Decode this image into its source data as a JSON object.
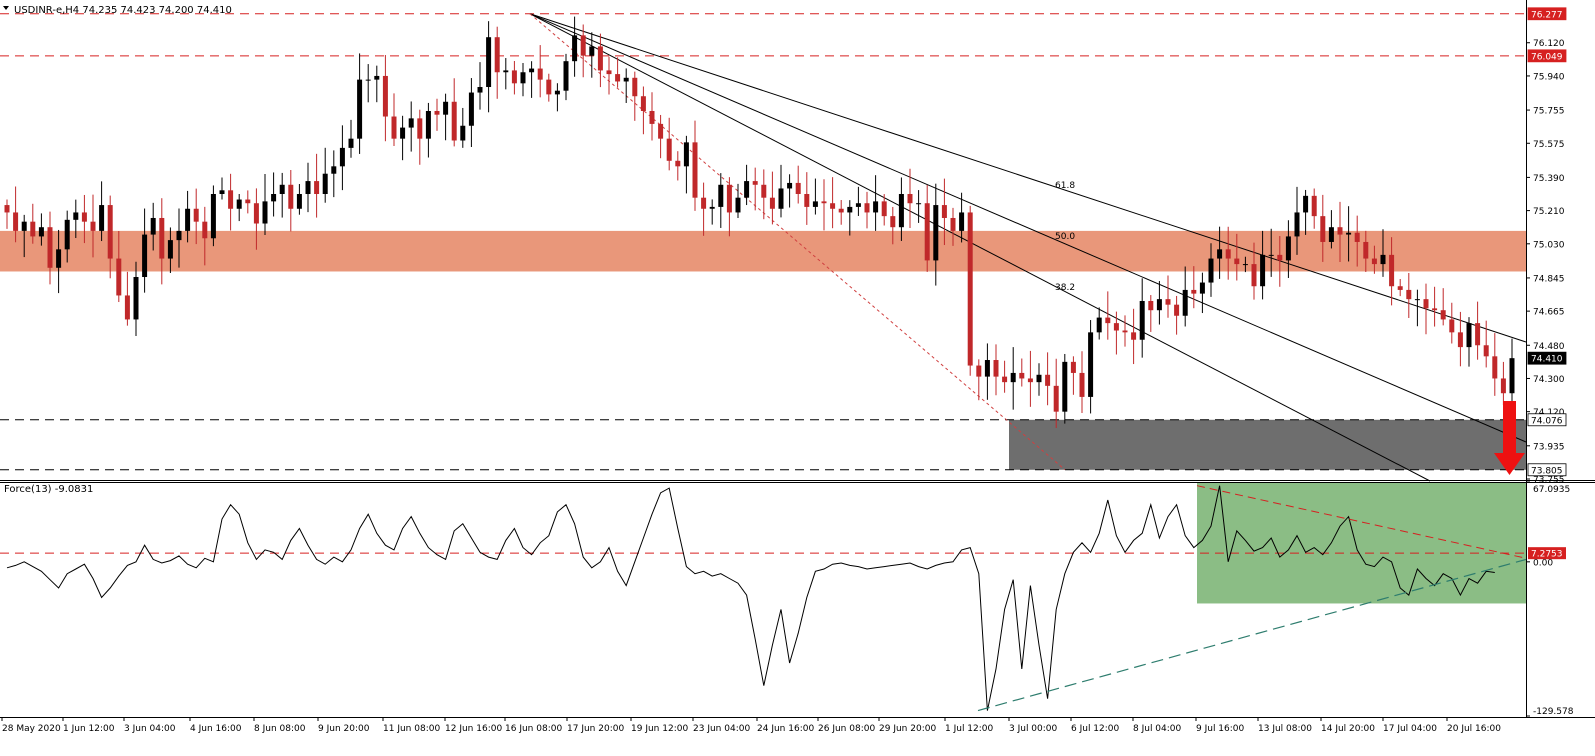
{
  "header": {
    "main_label": "USDINR-e,H4  74.235 74.423 74.200 74.410",
    "force_label": "Force(13) -9.0831"
  },
  "colors": {
    "bull_candle": "#000000",
    "bear_candle": "#c0282a",
    "zone_red": "#e9977a",
    "zone_grey": "#6e6e6e",
    "zone_green": "#8bbd85",
    "level_line": "#d62020",
    "arrow": "#ee1111",
    "trend_up_dashed": "#2e7d6e"
  },
  "chart_data": [
    {
      "type": "candlestick",
      "symbol": "USDINR-e",
      "timeframe": "H4",
      "last": {
        "open": 74.235,
        "high": 74.423,
        "low": 74.2,
        "close": 74.41
      },
      "ylim": [
        73.755,
        76.33
      ],
      "y_ticks": [
        "76.120",
        "75.940",
        "75.755",
        "75.575",
        "75.390",
        "75.210",
        "75.030",
        "74.845",
        "74.665",
        "74.480",
        "74.300",
        "74.120",
        "73.935",
        "73.755"
      ],
      "price_labels": [
        {
          "value": 76.277,
          "text": "76.277",
          "style": "red"
        },
        {
          "value": 76.049,
          "text": "76.049",
          "style": "red"
        },
        {
          "value": 74.41,
          "text": "74.410",
          "style": "black"
        },
        {
          "value": 74.076,
          "text": "74.076",
          "style": "white"
        },
        {
          "value": 73.805,
          "text": "73.805",
          "style": "white"
        }
      ],
      "horizontal_levels": [
        {
          "value": 76.277,
          "style": "red-dashed"
        },
        {
          "value": 76.049,
          "style": "red-dashed"
        },
        {
          "value": 74.076,
          "style": "black-dashed"
        },
        {
          "value": 73.805,
          "style": "black-dashed"
        }
      ],
      "zones": [
        {
          "name": "resistance-zone",
          "from": 74.88,
          "to": 75.1,
          "color": "zone_red"
        },
        {
          "name": "support-zone",
          "from": 73.805,
          "to": 74.076,
          "color": "zone_grey"
        }
      ],
      "fan": {
        "origin_value": 76.277,
        "labels": [
          "61.8",
          "50.0",
          "38.2"
        ],
        "target_value": 73.805
      },
      "arrow": {
        "direction": "down"
      },
      "x_labels": [
        "28 May 2020",
        "1 Jun 12:00",
        "3 Jun 04:00",
        "4 Jun 16:00",
        "8 Jun 08:00",
        "9 Jun 20:00",
        "11 Jun 08:00",
        "12 Jun 16:00",
        "16 Jun 08:00",
        "17 Jun 20:00",
        "19 Jun 12:00",
        "23 Jun 04:00",
        "24 Jun 16:00",
        "26 Jun 08:00",
        "29 Jun 20:00",
        "1 Jul 12:00",
        "3 Jul 00:00",
        "6 Jul 12:00",
        "8 Jul 04:00",
        "9 Jul 16:00",
        "13 Jul 08:00",
        "14 Jul 20:00",
        "17 Jul 04:00",
        "20 Jul 16:00"
      ],
      "closes": [
        75.2,
        75.1,
        75.15,
        75.07,
        75.12,
        74.9,
        75.0,
        75.16,
        75.2,
        75.15,
        75.1,
        75.24,
        74.95,
        74.75,
        74.62,
        74.85,
        75.08,
        75.17,
        74.95,
        75.05,
        75.1,
        75.22,
        75.15,
        75.06,
        75.3,
        75.32,
        75.22,
        75.27,
        75.25,
        75.14,
        75.26,
        75.3,
        75.35,
        75.22,
        75.3,
        75.37,
        75.3,
        75.41,
        75.45,
        75.55,
        75.6,
        75.92,
        75.92,
        75.94,
        75.72,
        75.6,
        75.66,
        75.71,
        75.6,
        75.75,
        75.73,
        75.8,
        75.59,
        75.67,
        75.85,
        75.88,
        76.15,
        75.96,
        75.97,
        75.9,
        75.96,
        75.98,
        75.92,
        75.84,
        75.86,
        76.02,
        76.16,
        76.05,
        76.1,
        75.97,
        75.95,
        75.91,
        75.93,
        75.83,
        75.75,
        75.68,
        75.6,
        75.48,
        75.45,
        75.58,
        75.28,
        75.22,
        75.23,
        75.35,
        75.2,
        75.28,
        75.37,
        75.35,
        75.28,
        75.22,
        75.33,
        75.36,
        75.3,
        75.23,
        75.26,
        75.25,
        75.22,
        75.2,
        75.23,
        75.25,
        75.2,
        75.26,
        75.18,
        75.12,
        75.3,
        75.25,
        75.25,
        74.94,
        75.24,
        75.17,
        75.1,
        75.2,
        74.37,
        74.31,
        74.4,
        74.31,
        74.28,
        74.33,
        74.3,
        74.28,
        74.32,
        74.26,
        74.12,
        74.39,
        74.33,
        74.2,
        74.55,
        74.63,
        74.6,
        74.56,
        74.55,
        74.51,
        74.72,
        74.67,
        74.73,
        74.7,
        74.64,
        74.78,
        74.76,
        74.82,
        74.95,
        75.0,
        74.95,
        74.92,
        74.92,
        74.8,
        74.97,
        74.97,
        74.94,
        75.07,
        75.2,
        75.29,
        75.18,
        75.04,
        75.12,
        75.08,
        75.09,
        75.04,
        74.95,
        74.92,
        74.97,
        74.8,
        74.78,
        74.73,
        74.73,
        74.68,
        74.67,
        74.62,
        74.55,
        74.47,
        74.6,
        74.48,
        74.42,
        74.3,
        74.22,
        74.41
      ]
    },
    {
      "type": "line",
      "name": "Force(13)",
      "last_value": -9.0831,
      "ylim": [
        -129.578,
        67.0935
      ],
      "y_ticks": [
        "67.0935",
        "0.00",
        "-129.578"
      ],
      "price_labels": [
        {
          "value": 7.2753,
          "text": "7.2753",
          "style": "red"
        }
      ],
      "horizontal_levels": [
        {
          "value": 7.2753,
          "style": "red-dashed"
        }
      ],
      "zones": [
        {
          "name": "force-green-zone",
          "from": -35,
          "to": 67.0935,
          "color": "zone_green"
        }
      ],
      "values": [
        -5,
        -3,
        0,
        -4,
        -8,
        -15,
        -22,
        -10,
        -6,
        -2,
        -14,
        -30,
        -22,
        -12,
        -3,
        0,
        14,
        2,
        -1,
        1,
        5,
        -2,
        -5,
        3,
        0,
        36,
        48,
        40,
        16,
        2,
        10,
        8,
        2,
        18,
        28,
        14,
        2,
        -2,
        4,
        0,
        10,
        28,
        40,
        24,
        14,
        10,
        28,
        38,
        24,
        12,
        6,
        2,
        26,
        32,
        20,
        8,
        4,
        2,
        18,
        28,
        12,
        6,
        16,
        22,
        42,
        48,
        32,
        4,
        -5,
        0,
        12,
        -8,
        -20,
        0,
        20,
        40,
        58,
        62,
        28,
        -4,
        -10,
        -8,
        -12,
        -10,
        -14,
        -18,
        -28,
        -65,
        -104,
        -70,
        -40,
        -85,
        -60,
        -30,
        -8,
        -6,
        -2,
        -1,
        -3,
        -4,
        -6,
        -5,
        -4,
        -3,
        -2,
        -1,
        -4,
        -6,
        -3,
        -1,
        0,
        10,
        12,
        -10,
        -125,
        -90,
        -40,
        -15,
        -90,
        -20,
        -70,
        -115,
        -40,
        -10,
        8,
        16,
        8,
        24,
        52,
        22,
        8,
        18,
        24,
        48,
        20,
        38,
        48,
        22,
        12,
        18,
        30,
        64,
        0,
        26,
        18,
        9,
        12,
        20,
        4,
        10,
        22,
        8,
        12,
        6,
        16,
        30,
        38,
        10,
        -2,
        -4,
        4,
        0,
        -22,
        -28,
        -6,
        -14,
        -20,
        -10,
        -14,
        -28,
        -14,
        -18,
        -8,
        -9
      ]
    }
  ]
}
